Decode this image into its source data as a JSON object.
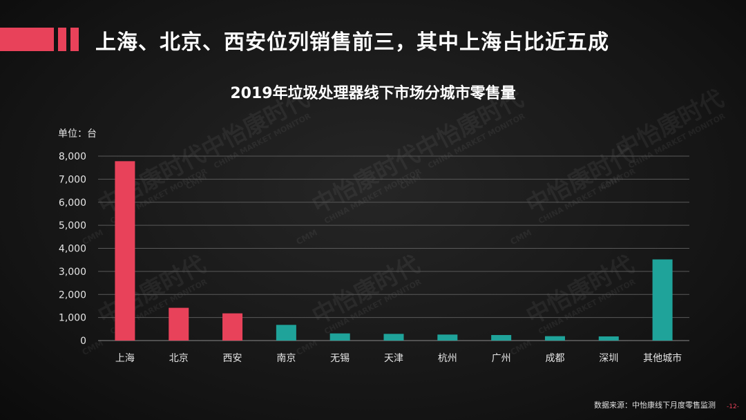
{
  "header": {
    "headline": "上海、北京、西安位列销售前三，其中上海占比近五成"
  },
  "watermark": {
    "brand": "中怡康时代",
    "sub": "CHINA MARKET MONITOR",
    "badge": "CMM"
  },
  "chart_data": {
    "type": "bar",
    "title": "2019年垃圾处理器线下市场分城市零售量",
    "unit_label": "单位：台",
    "categories": [
      "上海",
      "北京",
      "西安",
      "南京",
      "无锡",
      "天津",
      "杭州",
      "广州",
      "成都",
      "深圳",
      "其他城市"
    ],
    "values": [
      7780,
      1420,
      1180,
      680,
      310,
      290,
      260,
      240,
      190,
      180,
      3520
    ],
    "colors": [
      "#e8425a",
      "#e8425a",
      "#e8425a",
      "#1fa39a",
      "#1fa39a",
      "#1fa39a",
      "#1fa39a",
      "#1fa39a",
      "#1fa39a",
      "#1fa39a",
      "#1fa39a"
    ],
    "ylim": [
      0,
      8000
    ],
    "yticks": [
      "0",
      "1,000",
      "2,000",
      "3,000",
      "4,000",
      "5,000",
      "6,000",
      "7,000",
      "8,000"
    ],
    "grid": true,
    "xlabel": "",
    "ylabel": ""
  },
  "footer": {
    "source": "数据来源：中怡康线下月度零售监测",
    "page": "-12-"
  },
  "colors": {
    "accent": "#e8425a",
    "teal": "#1fa39a",
    "background": "#151515"
  }
}
